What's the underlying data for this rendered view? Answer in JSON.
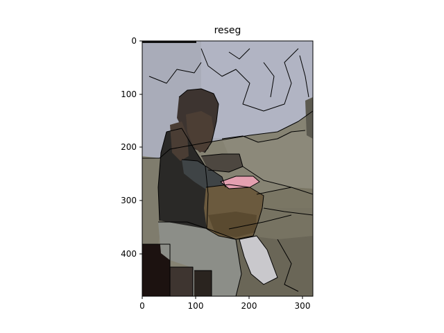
{
  "figure": {
    "title": "reseg"
  },
  "axes": {
    "x_ticks": [
      "0",
      "100",
      "200",
      "300"
    ],
    "y_ticks": [
      "0",
      "100",
      "200",
      "300",
      "400"
    ]
  },
  "image_extent": {
    "width": 320,
    "height": 480
  },
  "colors": {
    "sky": "#a9acb9",
    "sky_light": "#b3b6c5",
    "hair": "#3d3430",
    "skin": "#4c3e34",
    "jacket": "#2a2927",
    "sleeve": "#3f4446",
    "basket": "#6b5a3e",
    "basket_dark": "#5a4a30",
    "pink": "#e4a0b0",
    "ground": "#868373",
    "ground_dark": "#6a6657",
    "rock": "#7d7868",
    "pants": "#8c8e88",
    "cloth_white": "#c9c8cc",
    "dark_left": "#1c1210",
    "dark_bottom": "#2a241f"
  }
}
